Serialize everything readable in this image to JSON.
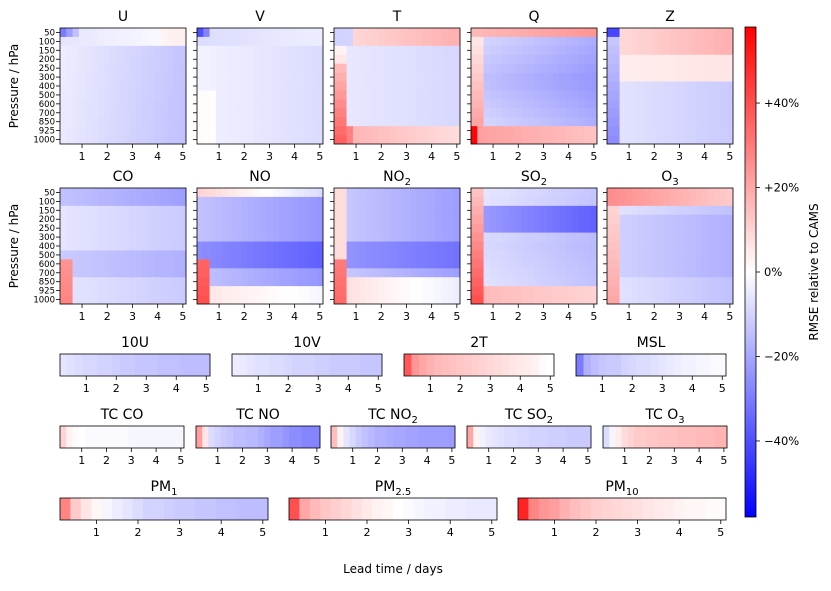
{
  "chart_data": {
    "type": "heatmap",
    "metric_colorbar_label": "RMSE relative to CAMS",
    "colorbar": {
      "ticks": [
        "+40%",
        "+20%",
        "0%",
        "−20%",
        "−40%"
      ],
      "tick_values": [
        40,
        20,
        0,
        -20,
        -40
      ],
      "range": [
        -58,
        58
      ],
      "colormap": "bwr",
      "color_low": "#0000ff",
      "color_mid": "#ffffff",
      "color_high": "#ff0000"
    },
    "xlabel": "Lead time / days",
    "ylabel": "Pressure / hPa",
    "pressure_levels": [
      "50",
      "100",
      "150",
      "200",
      "250",
      "300",
      "400",
      "500",
      "600",
      "700",
      "850",
      "925",
      "1000"
    ],
    "lead_ticks": [
      "1",
      "2",
      "3",
      "4",
      "5"
    ],
    "atmospheric_panels": [
      {
        "name": "U",
        "label_main": "U",
        "label_sub": "",
        "shape": "u"
      },
      {
        "name": "V",
        "label_main": "V",
        "label_sub": "",
        "shape": "v"
      },
      {
        "name": "T",
        "label_main": "T",
        "label_sub": "",
        "shape": "t"
      },
      {
        "name": "Q",
        "label_main": "Q",
        "label_sub": "",
        "shape": "q"
      },
      {
        "name": "Z",
        "label_main": "Z",
        "label_sub": "",
        "shape": "z"
      },
      {
        "name": "CO",
        "label_main": "CO",
        "label_sub": "",
        "shape": "co"
      },
      {
        "name": "NO",
        "label_main": "NO",
        "label_sub": "",
        "shape": "no"
      },
      {
        "name": "NO2",
        "label_main": "NO",
        "label_sub": "2",
        "shape": "no2"
      },
      {
        "name": "SO2",
        "label_main": "SO",
        "label_sub": "2",
        "shape": "so2"
      },
      {
        "name": "O3",
        "label_main": "O",
        "label_sub": "3",
        "shape": "o3"
      }
    ],
    "surface_panels": [
      {
        "name": "10U",
        "label_main": "10U",
        "label_sub": "",
        "values": [
          -6,
          -7,
          -8,
          -9,
          -9,
          -10,
          -10,
          -11,
          -12,
          -12,
          -13,
          -13,
          -13,
          -14,
          -14,
          -14,
          -15,
          -15,
          -15,
          -15
        ]
      },
      {
        "name": "10V",
        "label_main": "10V",
        "label_sub": "",
        "values": [
          -4,
          -5,
          -6,
          -7,
          -7,
          -8,
          -8,
          -9,
          -10,
          -10,
          -10,
          -11,
          -11,
          -12,
          -12,
          -12,
          -12,
          -13,
          -13,
          -13
        ]
      },
      {
        "name": "2T",
        "label_main": "2T",
        "label_sub": "",
        "values": [
          38,
          24,
          20,
          18,
          16,
          15,
          14,
          13,
          12,
          11,
          10,
          9,
          8,
          7,
          6,
          5,
          4,
          3,
          1,
          0
        ]
      },
      {
        "name": "MSL",
        "label_main": "MSL",
        "label_sub": "",
        "values": [
          -30,
          -18,
          -15,
          -13,
          -12,
          -12,
          -10,
          -9,
          -8,
          -8,
          -7,
          -6,
          -5,
          -4,
          -3,
          -3,
          -2,
          -2,
          -1,
          -1
        ]
      },
      {
        "name": "TC_CO",
        "label_main": "TC CO",
        "label_sub": "",
        "values": [
          10,
          3,
          1,
          0,
          -1,
          -1,
          -1,
          -1,
          -1,
          -1,
          -1,
          -2,
          -2,
          -2,
          -2,
          -2,
          -2,
          -2,
          -2,
          -2
        ]
      },
      {
        "name": "TC_NO",
        "label_main": "TC NO",
        "label_sub": "",
        "values": [
          22,
          6,
          -8,
          -10,
          -12,
          -13,
          -15,
          -15,
          -16,
          -16,
          -18,
          -20,
          -22,
          -22,
          -24,
          -26,
          -26,
          -28,
          -28,
          -28
        ]
      },
      {
        "name": "TC_NO2",
        "label_main": "TC NO",
        "label_sub": "2",
        "values": [
          15,
          3,
          -6,
          -9,
          -12,
          -14,
          -16,
          -18,
          -18,
          -19,
          -20,
          -20,
          -21,
          -21,
          -22,
          -22,
          -22,
          -22,
          -22,
          -23
        ]
      },
      {
        "name": "TC_SO2",
        "label_main": "TC SO",
        "label_sub": "2",
        "values": [
          20,
          3,
          -3,
          -5,
          -6,
          -7,
          -8,
          -8,
          -9,
          -9,
          -10,
          -10,
          -10,
          -11,
          -11,
          -11,
          -12,
          -12,
          -12,
          -12
        ]
      },
      {
        "name": "TC_O3",
        "label_main": "TC O",
        "label_sub": "3",
        "values": [
          -8,
          -2,
          4,
          8,
          10,
          12,
          12,
          13,
          13,
          14,
          14,
          14,
          15,
          15,
          15,
          16,
          16,
          16,
          17,
          17
        ]
      },
      {
        "name": "PM1",
        "label_main": "PM",
        "label_sub": "1",
        "values": [
          28,
          12,
          6,
          2,
          -2,
          -4,
          -6,
          -8,
          -10,
          -10,
          -11,
          -12,
          -12,
          -13,
          -13,
          -14,
          -14,
          -15,
          -15,
          -15
        ]
      },
      {
        "name": "PM2.5",
        "label_main": "PM",
        "label_sub": "2.5",
        "values": [
          40,
          20,
          16,
          13,
          11,
          9,
          7,
          5,
          3,
          2,
          0,
          -1,
          -2,
          -3,
          -3,
          -4,
          -4,
          -5,
          -5,
          -5
        ]
      },
      {
        "name": "PM10",
        "label_main": "PM",
        "label_sub": "10",
        "values": [
          50,
          28,
          24,
          22,
          18,
          15,
          13,
          11,
          10,
          9,
          8,
          7,
          6,
          5,
          4,
          3,
          2,
          2,
          1,
          1
        ]
      }
    ]
  }
}
